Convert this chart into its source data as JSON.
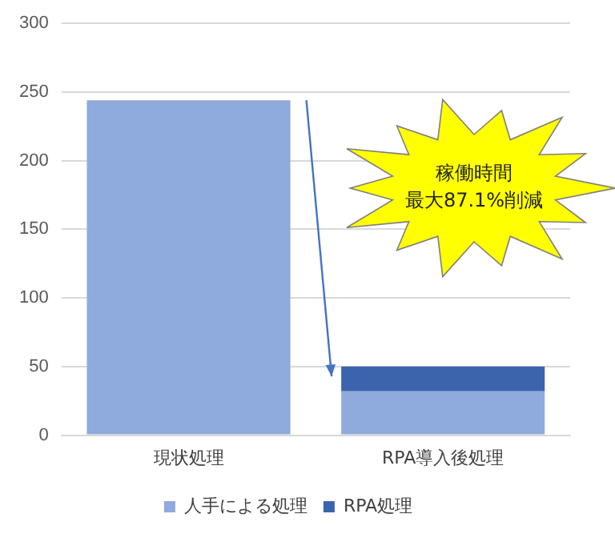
{
  "chart_data": {
    "type": "bar",
    "stacked": true,
    "categories": [
      "現状処理",
      "RPA導入後処理"
    ],
    "series": [
      {
        "name": "人手による処理",
        "color": "#8faadc",
        "values": [
          244,
          32
        ]
      },
      {
        "name": "RPA処理",
        "color": "#3b64ad",
        "values": [
          null,
          18
        ]
      }
    ],
    "ylim": [
      0,
      300
    ],
    "yticks": [
      0,
      50,
      100,
      150,
      200,
      250,
      300
    ],
    "grid": "y",
    "legend": "bottom",
    "annotations": [
      "稼働時間",
      "最大87.1%削減"
    ]
  }
}
